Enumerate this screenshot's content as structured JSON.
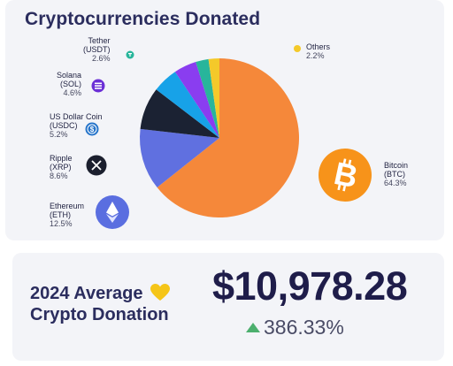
{
  "title": "Cryptocurrencies Donated",
  "chart_data": {
    "type": "pie",
    "title": "Cryptocurrencies Donated",
    "slices": [
      {
        "name": "Bitcoin",
        "ticker": "(BTC)",
        "value": 64.3,
        "pct_label": "64.3%",
        "color": "#f5883a",
        "icon": "bitcoin-icon"
      },
      {
        "name": "Ethereum",
        "ticker": "(ETH)",
        "value": 12.5,
        "pct_label": "12.5%",
        "color": "#6070e0",
        "icon": "ethereum-icon"
      },
      {
        "name": "Ripple",
        "ticker": "(XRP)",
        "value": 8.6,
        "pct_label": "8.6%",
        "color": "#1b2233",
        "icon": "ripple-icon"
      },
      {
        "name": "US Dollar Coin",
        "ticker": "(USDC)",
        "value": 5.2,
        "pct_label": "5.2%",
        "color": "#17a2e8",
        "icon": "usdc-icon"
      },
      {
        "name": "Solana",
        "ticker": "(SOL)",
        "value": 4.6,
        "pct_label": "4.6%",
        "color": "#8a3df0",
        "icon": "solana-icon"
      },
      {
        "name": "Tether",
        "ticker": "(USDT)",
        "value": 2.6,
        "pct_label": "2.6%",
        "color": "#28b59b",
        "icon": "tether-icon"
      },
      {
        "name": "Others",
        "ticker": "",
        "value": 2.2,
        "pct_label": "2.2%",
        "color": "#f4c92a",
        "icon": "others-dot-icon"
      }
    ]
  },
  "stats": {
    "label_line1": "2024 Average",
    "label_line2": "Crypto Donation",
    "heart_icon": "yellow-heart-icon",
    "amount": "$10,978.28",
    "change": "386.33%",
    "change_color": "#4caf6e"
  }
}
